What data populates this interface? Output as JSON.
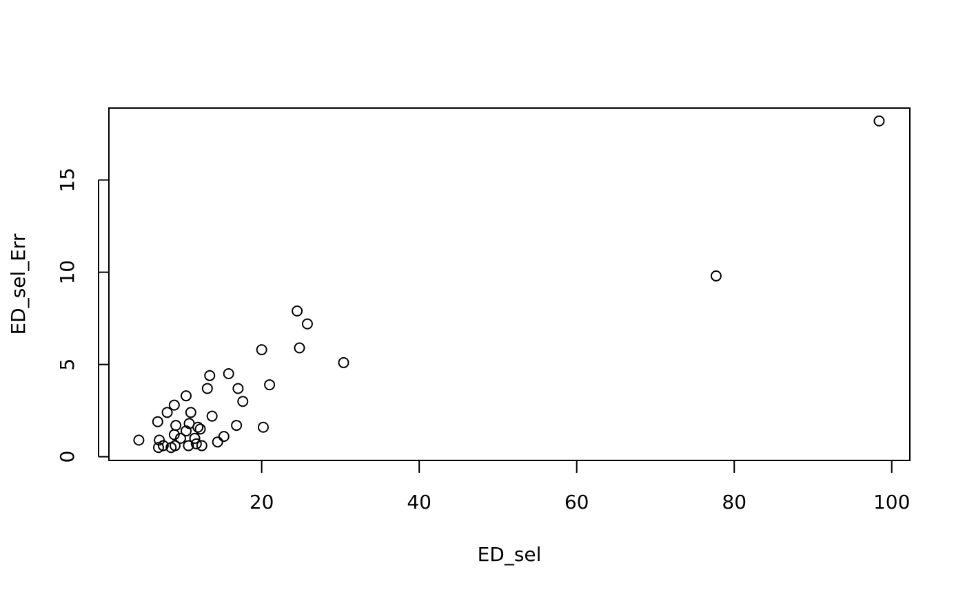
{
  "chart_data": {
    "type": "scatter",
    "title": "",
    "xlabel": "ED_sel",
    "ylabel": "ED_sel_Err",
    "xlim": [
      0.6,
      102.3
    ],
    "ylim": [
      -0.2,
      18.9
    ],
    "xticks": [
      20,
      40,
      60,
      80,
      100
    ],
    "yticks": [
      0,
      5,
      10,
      15
    ],
    "grid": false,
    "legend": "none",
    "colors": {
      "point": "#000000",
      "axis": "#000000",
      "background": "#ffffff"
    },
    "marker": "open-circle",
    "points": [
      {
        "x": 98.4,
        "y": 18.2
      },
      {
        "x": 77.7,
        "y": 9.8
      },
      {
        "x": 24.5,
        "y": 7.9
      },
      {
        "x": 25.8,
        "y": 7.2
      },
      {
        "x": 24.8,
        "y": 5.9
      },
      {
        "x": 20.0,
        "y": 5.8
      },
      {
        "x": 30.4,
        "y": 5.1
      },
      {
        "x": 15.8,
        "y": 4.5
      },
      {
        "x": 13.4,
        "y": 4.4
      },
      {
        "x": 21.0,
        "y": 3.9
      },
      {
        "x": 13.1,
        "y": 3.7
      },
      {
        "x": 17.0,
        "y": 3.7
      },
      {
        "x": 10.4,
        "y": 3.3
      },
      {
        "x": 17.6,
        "y": 3.0
      },
      {
        "x": 8.9,
        "y": 2.8
      },
      {
        "x": 8.0,
        "y": 2.4
      },
      {
        "x": 11.0,
        "y": 2.4
      },
      {
        "x": 13.7,
        "y": 2.2
      },
      {
        "x": 6.8,
        "y": 1.9
      },
      {
        "x": 10.8,
        "y": 1.8
      },
      {
        "x": 16.8,
        "y": 1.7
      },
      {
        "x": 9.1,
        "y": 1.7
      },
      {
        "x": 11.9,
        "y": 1.6
      },
      {
        "x": 20.2,
        "y": 1.6
      },
      {
        "x": 12.2,
        "y": 1.5
      },
      {
        "x": 10.4,
        "y": 1.4
      },
      {
        "x": 8.9,
        "y": 1.2
      },
      {
        "x": 15.2,
        "y": 1.1
      },
      {
        "x": 9.7,
        "y": 1.0
      },
      {
        "x": 11.5,
        "y": 1.0
      },
      {
        "x": 4.4,
        "y": 0.9
      },
      {
        "x": 7.0,
        "y": 0.9
      },
      {
        "x": 14.4,
        "y": 0.8
      },
      {
        "x": 11.7,
        "y": 0.7
      },
      {
        "x": 9.0,
        "y": 0.6
      },
      {
        "x": 7.5,
        "y": 0.6
      },
      {
        "x": 12.4,
        "y": 0.6
      },
      {
        "x": 10.7,
        "y": 0.6
      },
      {
        "x": 6.9,
        "y": 0.5
      },
      {
        "x": 8.5,
        "y": 0.5
      }
    ]
  }
}
